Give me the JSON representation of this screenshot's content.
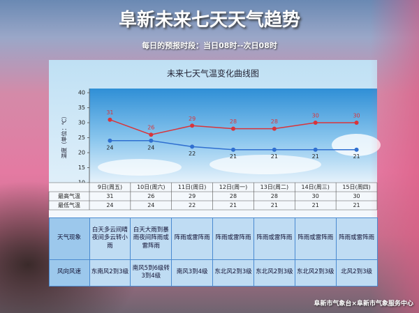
{
  "header": {
    "title": "阜新未来七天天气趋势",
    "subtitle": "每日的预报时段：当日08时--次日08时"
  },
  "chart_data": {
    "type": "line",
    "title": "未来七天气温变化曲线图",
    "y_label": "温度（单位：℃）",
    "categories": [
      "9日(周五)",
      "10日(周六)",
      "11日(周日)",
      "12日(周一)",
      "13日(周二)",
      "14日(周三)",
      "15日(周四)"
    ],
    "series": [
      {
        "name": "最高气温",
        "color": "#d9343a",
        "values": [
          31,
          26,
          29,
          28,
          28,
          30,
          30
        ]
      },
      {
        "name": "最低气温",
        "color": "#2f6fd0",
        "values": [
          24,
          24,
          22,
          21,
          21,
          21,
          21
        ]
      }
    ],
    "ylim": [
      10,
      40
    ],
    "yticks": [
      10,
      15,
      20,
      25,
      30,
      35,
      40
    ],
    "grid": false
  },
  "table": {
    "rows": [
      {
        "label": "天气现象",
        "cells": [
          "白天多云间晴夜间多云转小雨",
          "白天大雨到暴雨夜间阵雨或雷阵雨",
          "阵雨或雷阵雨",
          "阵雨或雷阵雨",
          "阵雨或雷阵雨",
          "阵雨或雷阵雨",
          "阵雨或雷阵雨"
        ]
      },
      {
        "label": "风向风速",
        "cells": [
          "东南风2到3级",
          "南风5到6级转3到4级",
          "南风3到4级",
          "东北风2到3级",
          "东北风2到3级",
          "东北风2到3级",
          "北风2到3级"
        ]
      }
    ]
  },
  "footer": {
    "credit": "阜新市气象台×阜新市气象服务中心"
  }
}
